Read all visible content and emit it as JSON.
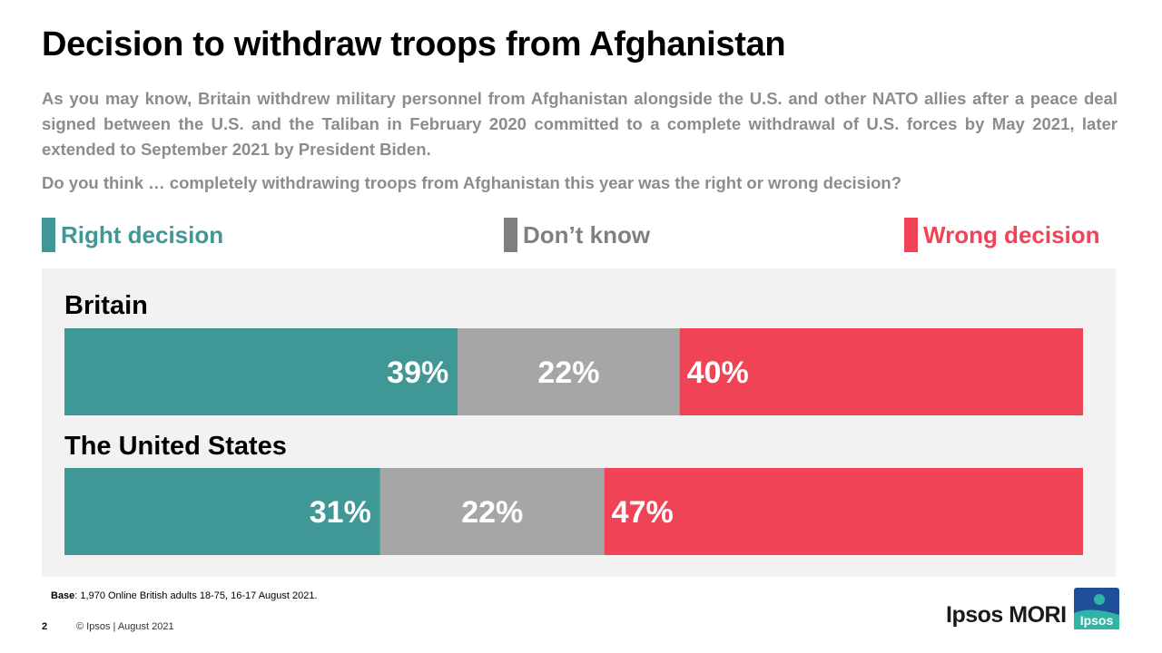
{
  "header": {
    "title": "Decision to withdraw troops from Afghanistan",
    "intro": "As you may know, Britain withdrew military personnel from Afghanistan alongside the U.S. and other NATO allies after a peace deal signed between the U.S. and the Taliban in February 2020 committed to a complete withdrawal of U.S. forces by May 2021, later extended to September 2021 by President Biden.",
    "question": "Do you think … completely withdrawing troops from Afghanistan this year was the right or wrong decision?"
  },
  "legend": [
    {
      "label": "Right decision",
      "color": "#3f9896"
    },
    {
      "label": "Don’t know",
      "color": "#808080"
    },
    {
      "label": "Wrong decision",
      "color": "#f04355"
    }
  ],
  "chart_data": {
    "type": "bar",
    "orientation": "horizontal-stacked-100",
    "categories": [
      "Britain",
      "The United States"
    ],
    "series": [
      {
        "name": "Right decision",
        "values": [
          39,
          31
        ],
        "color": "#3f9896",
        "labels": [
          "39%",
          "31%"
        ]
      },
      {
        "name": "Don’t know",
        "values": [
          22,
          22
        ],
        "color": "#a6a6a6",
        "labels": [
          "22%",
          "22%"
        ]
      },
      {
        "name": "Wrong decision",
        "values": [
          40,
          47
        ],
        "color": "#f04355",
        "labels": [
          "40%",
          "47%"
        ]
      }
    ],
    "legend_position": "top",
    "grid": false
  },
  "footer": {
    "base_label": "Base",
    "base_text": ": 1,970 Online British adults 18-75, 16-17 August 2021.",
    "page_number": "2",
    "copyright": "© Ipsos | August 2021",
    "brand": "Ipsos MORI",
    "logo_text": "Ipsos"
  }
}
